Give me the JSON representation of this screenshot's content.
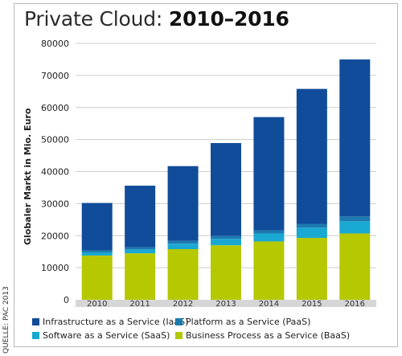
{
  "chart_data": {
    "type": "bar",
    "stacked": true,
    "title": "Private Cloud:",
    "title_bold": "2010–2016",
    "ylabel": "Globaler Markt in Mio. Euro",
    "xlabel": "",
    "source": "QUELLE: PAC 2013",
    "ylim": [
      0,
      80000
    ],
    "yticks": [
      0,
      10000,
      20000,
      30000,
      40000,
      50000,
      60000,
      70000,
      80000
    ],
    "grid": true,
    "legend_position": "bottom",
    "categories": [
      "2010",
      "2011",
      "2012",
      "2013",
      "2014",
      "2015",
      "2016"
    ],
    "series": [
      {
        "name": "Business Process as a Service (BaaS)",
        "color": "#b5c800",
        "values": [
          13800,
          14500,
          15800,
          17000,
          18200,
          19300,
          20700
        ]
      },
      {
        "name": "Software as a Service (SaaS)",
        "color": "#19a8d2",
        "values": [
          1000,
          1200,
          1700,
          2000,
          2500,
          3200,
          3800
        ]
      },
      {
        "name": "Platform as a Service (PaaS)",
        "color": "#1d7ab0",
        "values": [
          600,
          700,
          900,
          900,
          1000,
          1200,
          1500
        ]
      },
      {
        "name": "Infrastructure as a Service (IaaS)",
        "color": "#114c9a",
        "values": [
          14800,
          19200,
          23300,
          29000,
          35300,
          42100,
          49000
        ]
      }
    ],
    "legend_order": [
      "Infrastructure as a Service (IaaS)",
      "Platform as a Service (PaaS)",
      "Software as a Service (SaaS)",
      "Business Process as a Service (BaaS)"
    ]
  }
}
